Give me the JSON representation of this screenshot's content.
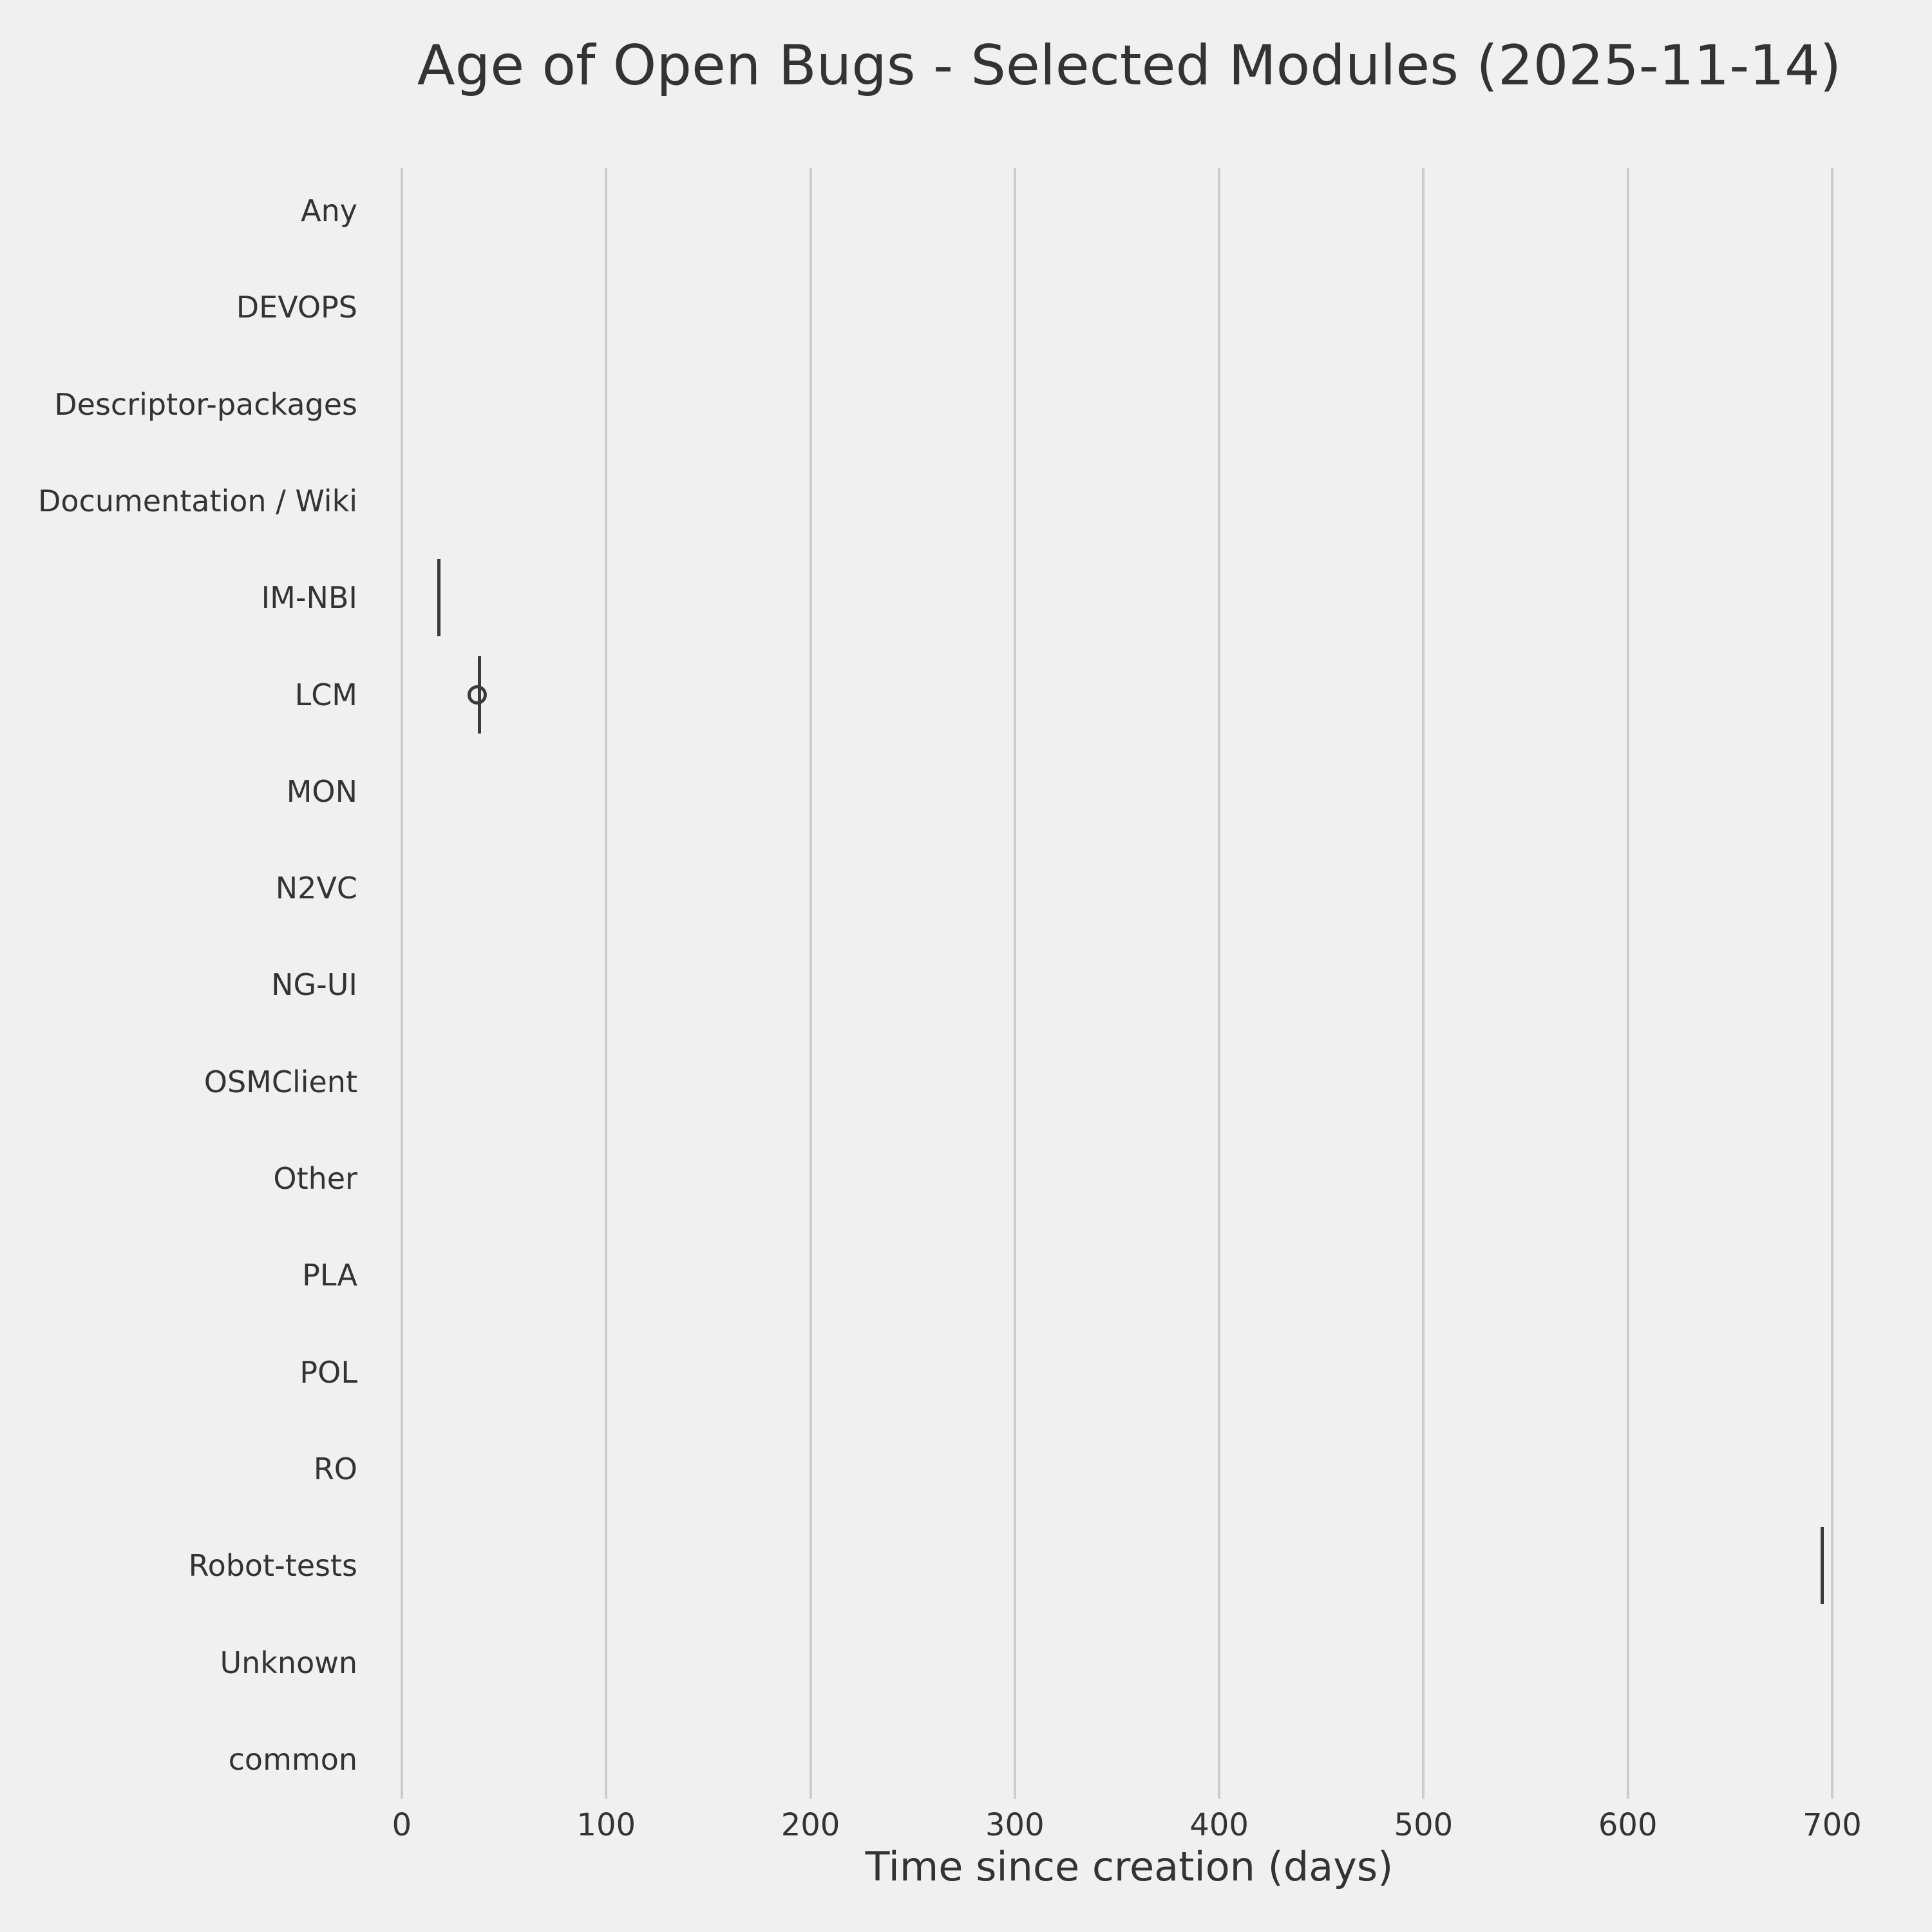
{
  "colors": {
    "background": "#f0f0f0",
    "grid": "#cccccc",
    "text": "#333333",
    "marks": "#3a3a3a"
  },
  "chart_data": {
    "type": "boxplot",
    "orientation": "horizontal",
    "title": "Age of Open Bugs - Selected Modules (2025-11-14)",
    "xlabel": "Time since creation (days)",
    "grid": "vertical",
    "legend": "none",
    "xlim": [
      -17,
      729
    ],
    "x_ticks": [
      0,
      100,
      200,
      300,
      400,
      500,
      600,
      700
    ],
    "categories": [
      "Any",
      "DEVOPS",
      "Descriptor-packages",
      "Documentation / Wiki",
      "IM-NBI",
      "LCM",
      "MON",
      "N2VC",
      "NG-UI",
      "OSMClient",
      "Other",
      "PLA",
      "POL",
      "RO",
      "Robot-tests",
      "Unknown",
      "common"
    ],
    "boxes": [
      {
        "category": "IM-NBI",
        "whisker_low": 18,
        "q1": 18,
        "median": 18,
        "q3": 18,
        "whisker_high": 18,
        "outliers": []
      },
      {
        "category": "LCM",
        "whisker_low": 38,
        "q1": 38,
        "median": 38,
        "q3": 38,
        "whisker_high": 38,
        "outliers": [
          37
        ]
      },
      {
        "category": "Robot-tests",
        "whisker_low": 695,
        "q1": 695,
        "median": 695,
        "q3": 695,
        "whisker_high": 695,
        "outliers": []
      }
    ],
    "categories_without_data": [
      "Any",
      "DEVOPS",
      "Descriptor-packages",
      "Documentation / Wiki",
      "MON",
      "N2VC",
      "NG-UI",
      "OSMClient",
      "Other",
      "PLA",
      "POL",
      "RO",
      "Unknown",
      "common"
    ]
  }
}
